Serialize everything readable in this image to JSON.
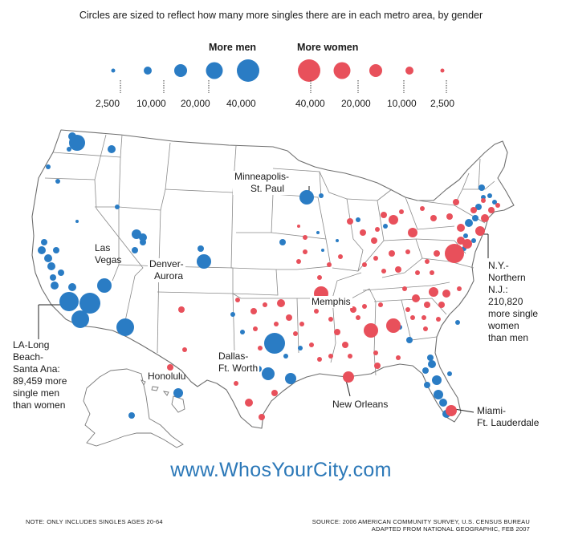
{
  "subtitle": "Circles are sized to reflect how many more singles there are in each metro area, by gender",
  "legend": {
    "men_title": "More men",
    "women_title": "More women",
    "men_color": "#2a7cc4",
    "women_color": "#e8505b",
    "men_ticks": [
      "2,500",
      "10,000",
      "20,000",
      "40,000"
    ],
    "women_ticks": [
      "40,000",
      "20,000",
      "10,000",
      "2,500"
    ]
  },
  "labels": {
    "minneapolis": [
      "Minneapolis-",
      "St. Paul"
    ],
    "las_vegas": [
      "Las",
      "Vegas"
    ],
    "denver": [
      "Denver-",
      "Aurora"
    ],
    "memphis": "Memphis",
    "dallas": [
      "Dallas-",
      "Ft. Worth"
    ],
    "honolulu": "Honolulu",
    "new_orleans": "New Orleans",
    "miami": [
      "Miami-",
      "Ft. Lauderdale"
    ],
    "la_head": [
      "LA-Long",
      "Beach-",
      "Santa Ana:"
    ],
    "la_body": [
      "89,459 more",
      "single men",
      "than women"
    ],
    "ny_head": [
      "N.Y.-",
      "Northern",
      "N.J.:"
    ],
    "ny_body": [
      "210,820",
      "more single",
      "women",
      "than men"
    ]
  },
  "website": "www.WhosYourCity.com",
  "note": "Note: Only includes singles ages 20-64",
  "source": [
    "Source: 2006 American Community Survey, U.S. Census Bureau",
    "Adapted from National Geographic, Feb 2007"
  ]
}
